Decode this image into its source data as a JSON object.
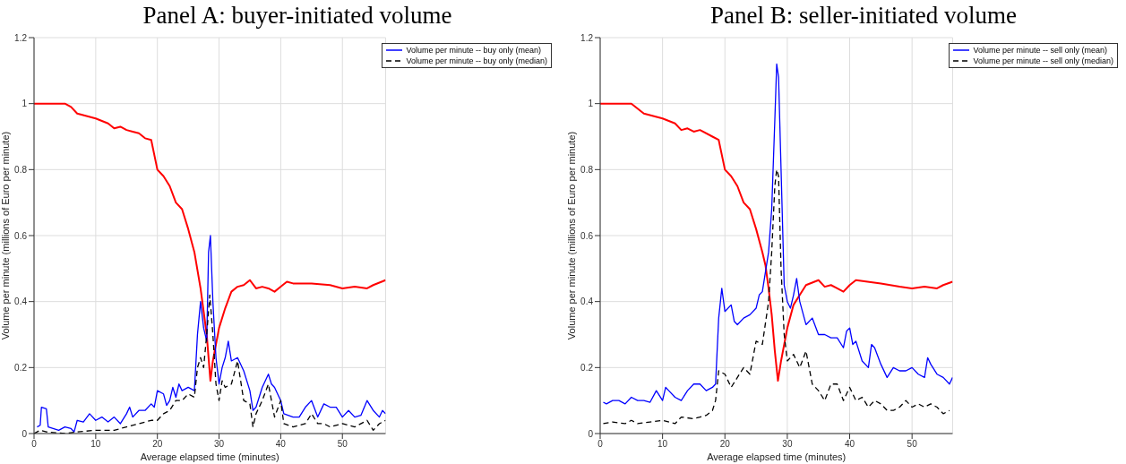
{
  "chart_data": [
    {
      "type": "line",
      "title": "Panel A: buyer-initiated volume",
      "xlabel": "Average elapsed time (minutes)",
      "ylabel": "Volume per minute (millions of Euro per minute)",
      "xlim": [
        0,
        57
      ],
      "xticks": [
        0,
        10,
        20,
        30,
        40,
        50
      ],
      "ylim": [
        0,
        1.2
      ],
      "yticks": [
        0,
        0.2,
        0.4,
        0.6,
        0.8,
        1,
        1.2
      ],
      "grid": true,
      "legend": "top right",
      "marker": "none",
      "series": [
        {
          "color": "#ff0000",
          "line_style": "solid",
          "x": [
            0,
            5,
            6,
            7,
            10,
            12,
            13,
            14,
            15,
            16,
            17,
            18,
            19,
            20,
            21,
            22,
            23,
            24,
            25,
            26,
            27,
            28,
            28.6,
            29,
            30,
            31,
            32,
            33,
            34,
            35,
            36,
            37,
            38,
            39,
            40,
            41,
            42,
            45,
            48,
            50,
            52,
            54,
            55,
            57
          ],
          "values": [
            1,
            1,
            0.99,
            0.97,
            0.955,
            0.94,
            0.925,
            0.93,
            0.92,
            0.915,
            0.91,
            0.895,
            0.89,
            0.8,
            0.78,
            0.75,
            0.7,
            0.68,
            0.62,
            0.55,
            0.44,
            0.3,
            0.16,
            0.22,
            0.32,
            0.38,
            0.43,
            0.445,
            0.45,
            0.465,
            0.44,
            0.445,
            0.44,
            0.43,
            0.445,
            0.46,
            0.455,
            0.455,
            0.45,
            0.44,
            0.445,
            0.44,
            0.45,
            0.465
          ]
        },
        {
          "name": "Volume per minute -- buy only (mean)",
          "color": "#0000ff",
          "line_style": "solid",
          "x": [
            0.5,
            1,
            1.2,
            2,
            2.3,
            4,
            5,
            6,
            6.5,
            7,
            8,
            9,
            10,
            11,
            12,
            13,
            14,
            15,
            15.5,
            16,
            17,
            18,
            19,
            19.5,
            20,
            21,
            21.5,
            22,
            22.5,
            23,
            23.5,
            24,
            25,
            26,
            26.5,
            27,
            27.5,
            28,
            28.3,
            28.6,
            29,
            29.5,
            30,
            30.5,
            31,
            31.5,
            32,
            33,
            34,
            35,
            35.5,
            36,
            37,
            38,
            38.5,
            39,
            40,
            40.5,
            42,
            43,
            44,
            45,
            46,
            47,
            48,
            49,
            50,
            51,
            52,
            53,
            54,
            55,
            56,
            56.5,
            57
          ],
          "values": [
            0.02,
            0.025,
            0.08,
            0.075,
            0.02,
            0.01,
            0.02,
            0.015,
            0.005,
            0.04,
            0.035,
            0.06,
            0.04,
            0.05,
            0.035,
            0.05,
            0.03,
            0.06,
            0.08,
            0.05,
            0.07,
            0.07,
            0.09,
            0.08,
            0.13,
            0.12,
            0.085,
            0.1,
            0.14,
            0.11,
            0.15,
            0.13,
            0.14,
            0.13,
            0.3,
            0.4,
            0.32,
            0.28,
            0.55,
            0.6,
            0.4,
            0.23,
            0.15,
            0.2,
            0.23,
            0.28,
            0.22,
            0.23,
            0.19,
            0.13,
            0.07,
            0.08,
            0.14,
            0.18,
            0.15,
            0.14,
            0.1,
            0.06,
            0.05,
            0.05,
            0.08,
            0.1,
            0.05,
            0.09,
            0.08,
            0.08,
            0.05,
            0.07,
            0.05,
            0.055,
            0.1,
            0.07,
            0.05,
            0.07,
            0.06
          ]
        },
        {
          "name": "Volume per minute -- buy only (median)",
          "color": "#000000",
          "line_style": "dashed",
          "x": [
            0,
            1,
            2,
            5,
            7,
            10,
            13,
            15,
            17,
            19,
            20,
            21,
            22,
            23,
            24,
            25,
            26,
            26.5,
            27,
            27.5,
            28,
            28.5,
            29,
            29.5,
            30,
            30.5,
            31,
            32,
            33,
            34,
            35,
            35.5,
            36,
            37,
            38,
            39,
            40,
            40.5,
            42,
            44,
            45,
            46,
            47,
            48,
            50,
            52,
            54,
            55,
            56,
            57
          ],
          "values": [
            0,
            0.01,
            0.005,
            0,
            0.005,
            0.01,
            0.01,
            0.02,
            0.03,
            0.04,
            0.04,
            0.06,
            0.07,
            0.1,
            0.1,
            0.12,
            0.11,
            0.2,
            0.23,
            0.2,
            0.3,
            0.42,
            0.3,
            0.15,
            0.1,
            0.16,
            0.14,
            0.15,
            0.22,
            0.1,
            0.09,
            0.02,
            0.06,
            0.1,
            0.15,
            0.05,
            0.1,
            0.03,
            0.02,
            0.03,
            0.06,
            0.03,
            0.03,
            0.02,
            0.03,
            0.02,
            0.04,
            0.01,
            0.03,
            0.04
          ]
        }
      ]
    },
    {
      "type": "line",
      "title": "Panel B: seller-initiated volume",
      "xlabel": "Average elapsed time (minutes)",
      "ylabel": "Volume per minute (millions of Euro per minute)",
      "xlim": [
        0,
        56.5
      ],
      "xticks": [
        0,
        10,
        20,
        30,
        40,
        50
      ],
      "ylim": [
        0,
        1.2
      ],
      "yticks": [
        0,
        0.2,
        0.4,
        0.6,
        0.8,
        1,
        1.2
      ],
      "grid": true,
      "legend": "top right",
      "marker": "none",
      "series": [
        {
          "color": "#ff0000",
          "line_style": "solid",
          "x": [
            0,
            5,
            7,
            10,
            12,
            13,
            14,
            15,
            16,
            18,
            19,
            20,
            21,
            22,
            23,
            24,
            25,
            26,
            26.5,
            27,
            27.5,
            28,
            28.5,
            29,
            30,
            31,
            32,
            33,
            35,
            36,
            37,
            38,
            39,
            40,
            41,
            45,
            48,
            50,
            52,
            54,
            55,
            56.5
          ],
          "values": [
            1,
            1,
            0.97,
            0.955,
            0.94,
            0.92,
            0.925,
            0.915,
            0.92,
            0.9,
            0.89,
            0.8,
            0.78,
            0.75,
            0.7,
            0.68,
            0.62,
            0.55,
            0.51,
            0.44,
            0.36,
            0.25,
            0.16,
            0.22,
            0.32,
            0.39,
            0.42,
            0.45,
            0.465,
            0.445,
            0.45,
            0.44,
            0.43,
            0.45,
            0.465,
            0.455,
            0.445,
            0.44,
            0.445,
            0.44,
            0.45,
            0.46
          ]
        },
        {
          "name": "Volume per minute -- sell only (mean)",
          "color": "#0000ff",
          "line_style": "solid",
          "x": [
            0.5,
            1,
            2,
            3,
            4,
            5,
            6,
            7,
            8,
            9,
            10,
            10.5,
            11,
            12,
            13,
            14,
            15,
            16,
            17,
            18,
            18.5,
            19,
            19.5,
            20,
            21,
            21.5,
            22,
            23,
            24,
            25,
            25.5,
            26,
            27,
            27.5,
            28,
            28.3,
            28.6,
            29,
            29.5,
            30,
            30.5,
            31,
            31.5,
            32,
            33,
            34,
            35,
            36,
            37,
            38,
            39,
            39.5,
            40,
            40.5,
            41,
            42,
            43,
            43.5,
            44,
            45,
            46,
            47,
            48,
            49,
            50,
            51,
            52,
            52.5,
            53,
            54,
            55,
            56,
            56.5
          ],
          "values": [
            0.095,
            0.09,
            0.1,
            0.1,
            0.09,
            0.11,
            0.1,
            0.1,
            0.095,
            0.13,
            0.1,
            0.14,
            0.13,
            0.11,
            0.1,
            0.13,
            0.15,
            0.15,
            0.13,
            0.14,
            0.15,
            0.35,
            0.44,
            0.37,
            0.39,
            0.34,
            0.33,
            0.35,
            0.36,
            0.38,
            0.42,
            0.43,
            0.55,
            0.68,
            0.95,
            1.12,
            1.08,
            0.8,
            0.45,
            0.4,
            0.38,
            0.42,
            0.47,
            0.4,
            0.33,
            0.35,
            0.3,
            0.3,
            0.29,
            0.29,
            0.26,
            0.31,
            0.32,
            0.27,
            0.28,
            0.22,
            0.2,
            0.27,
            0.26,
            0.21,
            0.17,
            0.2,
            0.19,
            0.19,
            0.2,
            0.18,
            0.17,
            0.23,
            0.21,
            0.18,
            0.17,
            0.15,
            0.17
          ]
        },
        {
          "name": "Volume per minute -- sell only (median)",
          "color": "#000000",
          "line_style": "dashed",
          "x": [
            0.5,
            2,
            4,
            5,
            6,
            8,
            10,
            12,
            13,
            15,
            16,
            17,
            18,
            18.5,
            19,
            20,
            21,
            22,
            23,
            24,
            25,
            26,
            27,
            27.5,
            28,
            28.3,
            28.6,
            29,
            29.5,
            30,
            31,
            32,
            33,
            34,
            35,
            36,
            37,
            38,
            39,
            40,
            41,
            42,
            43,
            44,
            45,
            46,
            47,
            48,
            49,
            50,
            51,
            52,
            53,
            54,
            55,
            56
          ],
          "values": [
            0.03,
            0.035,
            0.03,
            0.04,
            0.03,
            0.035,
            0.04,
            0.03,
            0.05,
            0.045,
            0.05,
            0.055,
            0.07,
            0.1,
            0.19,
            0.18,
            0.14,
            0.17,
            0.2,
            0.18,
            0.28,
            0.27,
            0.4,
            0.55,
            0.75,
            0.8,
            0.78,
            0.5,
            0.3,
            0.22,
            0.24,
            0.2,
            0.25,
            0.15,
            0.13,
            0.1,
            0.15,
            0.15,
            0.1,
            0.14,
            0.1,
            0.11,
            0.08,
            0.1,
            0.09,
            0.07,
            0.07,
            0.08,
            0.1,
            0.08,
            0.09,
            0.08,
            0.09,
            0.08,
            0.06,
            0.07
          ]
        }
      ]
    }
  ]
}
